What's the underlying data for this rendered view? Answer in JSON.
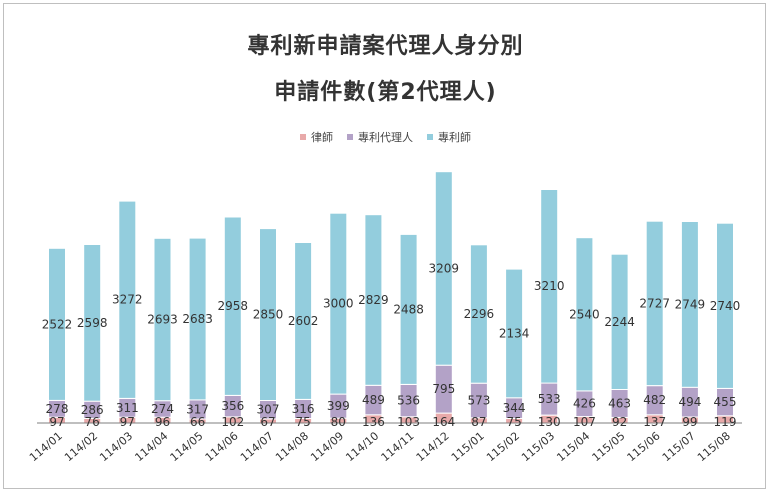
{
  "chart_data": {
    "type": "bar",
    "stacked": true,
    "title": "專利新申請案代理人身分別",
    "subtitle": "申請件數(第2代理人)",
    "legend_position": "top",
    "categories": [
      "114/01",
      "114/02",
      "114/03",
      "114/04",
      "114/05",
      "114/06",
      "114/07",
      "114/08",
      "114/09",
      "114/10",
      "114/11",
      "114/12",
      "115/01",
      "115/02",
      "115/03",
      "115/04",
      "115/05",
      "115/06",
      "115/07",
      "115/08"
    ],
    "series": [
      {
        "name": "律師",
        "color": "#e8a9a9",
        "values": [
          97,
          76,
          97,
          96,
          66,
          102,
          67,
          75,
          80,
          136,
          103,
          164,
          87,
          75,
          130,
          107,
          92,
          137,
          99,
          119
        ]
      },
      {
        "name": "專利代理人",
        "color": "#b3a2c7",
        "values": [
          278,
          286,
          311,
          274,
          317,
          356,
          307,
          316,
          399,
          489,
          536,
          795,
          573,
          344,
          533,
          426,
          463,
          482,
          494,
          455
        ]
      },
      {
        "name": "專利師",
        "color": "#93cddd",
        "values": [
          2522,
          2598,
          3272,
          2693,
          2683,
          2958,
          2850,
          2602,
          3000,
          2829,
          2488,
          3209,
          2296,
          2134,
          3210,
          2540,
          2244,
          2727,
          2749,
          2740
        ]
      }
    ],
    "ylim": [
      0,
      4200
    ],
    "grid": false
  }
}
